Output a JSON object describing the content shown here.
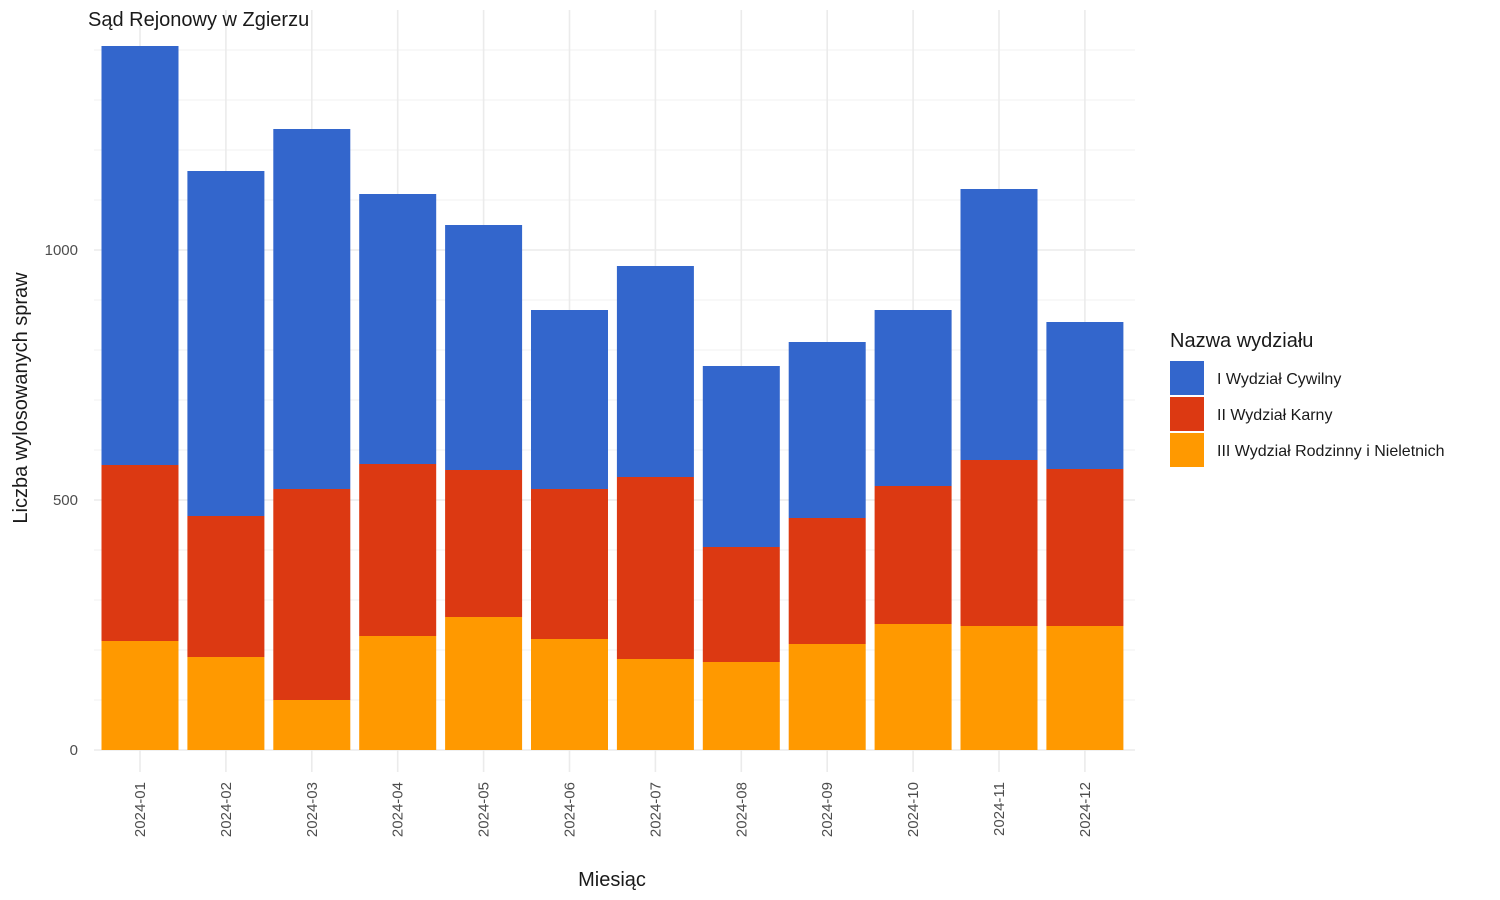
{
  "chart_data": {
    "type": "bar",
    "stacked": true,
    "title": "Sąd Rejonowy w Zgierzu",
    "xlabel": "Miesiąc",
    "ylabel": "Liczba wylosowanych spraw",
    "ylim": [
      0,
      1405
    ],
    "yticks": [
      "0",
      "500",
      "1000"
    ],
    "ytick_values": [
      0,
      500,
      1000
    ],
    "grid": true,
    "categories": [
      "2024-01",
      "2024-02",
      "2024-03",
      "2024-04",
      "2024-05",
      "2024-06",
      "2024-07",
      "2024-08",
      "2024-09",
      "2024-10",
      "2024-11",
      "2024-12"
    ],
    "legend": {
      "title": "Nazwa wydziału",
      "position": "right"
    },
    "series": [
      {
        "name": "III Wydział Rodzinny i Nieletnich",
        "color": "#FF9900",
        "values": [
          218,
          186,
          100,
          228,
          266,
          222,
          182,
          176,
          212,
          252,
          248,
          248
        ]
      },
      {
        "name": "II Wydział Karny",
        "color": "#DC3912",
        "values": [
          352,
          282,
          422,
          344,
          294,
          300,
          364,
          230,
          252,
          276,
          332,
          314
        ]
      },
      {
        "name": "I Wydział Cywilny",
        "color": "#3366CC",
        "values": [
          838,
          690,
          720,
          540,
          490,
          358,
          422,
          362,
          352,
          352,
          542,
          294
        ]
      }
    ],
    "legend_order": [
      "I Wydział Cywilny",
      "II Wydział Karny",
      "III Wydział Rodzinny i Nieletnich"
    ]
  }
}
